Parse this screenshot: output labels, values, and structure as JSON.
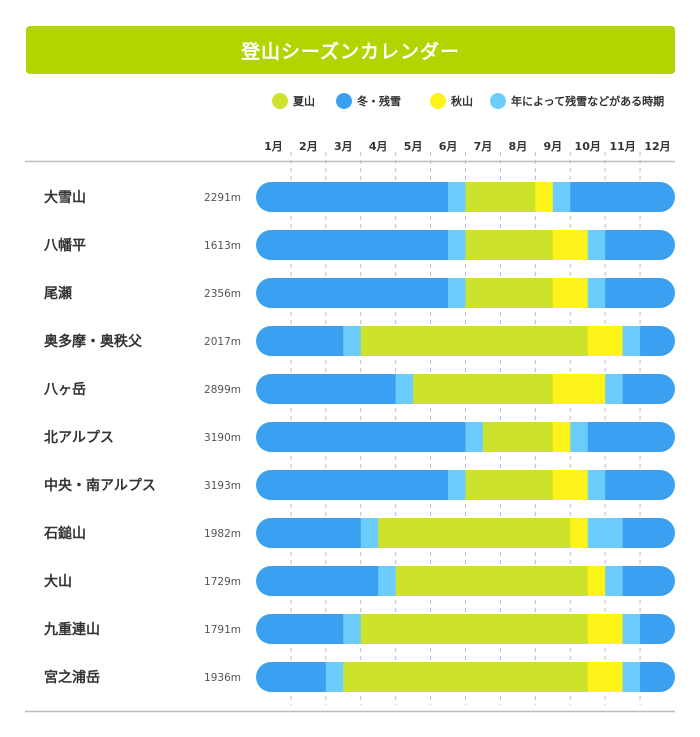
{
  "colors": {
    "summer": "#cde22c",
    "winter": "#3aa1f2",
    "autumn": "#fdf318",
    "variable": "#6ccdfd",
    "title_bg": "#b3d400",
    "axis": "#bdbdbd",
    "text": "#333333"
  },
  "chart_data": {
    "type": "bar",
    "title": "登山シーズンカレンダー",
    "legend": [
      {
        "key": "summer",
        "label": "夏山",
        "color": "#cde22c"
      },
      {
        "key": "winter",
        "label": "冬・残雪",
        "color": "#3aa1f2"
      },
      {
        "key": "autumn",
        "label": "秋山",
        "color": "#fdf318"
      },
      {
        "key": "variable",
        "label": "年によって残雪などがある時期",
        "color": "#6ccdfd"
      }
    ],
    "legend_position": "top-right",
    "months": [
      "1月",
      "2月",
      "3月",
      "4月",
      "5月",
      "6月",
      "7月",
      "8月",
      "9月",
      "10月",
      "11月",
      "12月"
    ],
    "xlim": [
      1,
      13
    ],
    "grid": true,
    "mountains": [
      {
        "name": "大雪山",
        "elevation": "2291m",
        "segments": [
          {
            "type": "winter",
            "start": 1,
            "end": 6.5
          },
          {
            "type": "variable",
            "start": 6.5,
            "end": 7
          },
          {
            "type": "summer",
            "start": 7,
            "end": 9
          },
          {
            "type": "autumn",
            "start": 9,
            "end": 9.5
          },
          {
            "type": "variable",
            "start": 9.5,
            "end": 10
          },
          {
            "type": "winter",
            "start": 10,
            "end": 13
          }
        ]
      },
      {
        "name": "八幡平",
        "elevation": "1613m",
        "segments": [
          {
            "type": "winter",
            "start": 1,
            "end": 6.5
          },
          {
            "type": "variable",
            "start": 6.5,
            "end": 7
          },
          {
            "type": "summer",
            "start": 7,
            "end": 9.5
          },
          {
            "type": "autumn",
            "start": 9.5,
            "end": 10.5
          },
          {
            "type": "variable",
            "start": 10.5,
            "end": 11
          },
          {
            "type": "winter",
            "start": 11,
            "end": 13
          }
        ]
      },
      {
        "name": "尾瀬",
        "elevation": "2356m",
        "segments": [
          {
            "type": "winter",
            "start": 1,
            "end": 6.5
          },
          {
            "type": "variable",
            "start": 6.5,
            "end": 7
          },
          {
            "type": "summer",
            "start": 7,
            "end": 9.5
          },
          {
            "type": "autumn",
            "start": 9.5,
            "end": 10.5
          },
          {
            "type": "variable",
            "start": 10.5,
            "end": 11
          },
          {
            "type": "winter",
            "start": 11,
            "end": 13
          }
        ]
      },
      {
        "name": "奥多摩・奥秩父",
        "elevation": "2017m",
        "segments": [
          {
            "type": "winter",
            "start": 1,
            "end": 3.5
          },
          {
            "type": "variable",
            "start": 3.5,
            "end": 4
          },
          {
            "type": "summer",
            "start": 4,
            "end": 10.5
          },
          {
            "type": "autumn",
            "start": 10.5,
            "end": 11.5
          },
          {
            "type": "variable",
            "start": 11.5,
            "end": 12
          },
          {
            "type": "winter",
            "start": 12,
            "end": 13
          }
        ]
      },
      {
        "name": "八ヶ岳",
        "elevation": "2899m",
        "segments": [
          {
            "type": "winter",
            "start": 1,
            "end": 5
          },
          {
            "type": "variable",
            "start": 5,
            "end": 5.5
          },
          {
            "type": "summer",
            "start": 5.5,
            "end": 9.5
          },
          {
            "type": "autumn",
            "start": 9.5,
            "end": 11
          },
          {
            "type": "variable",
            "start": 11,
            "end": 11.5
          },
          {
            "type": "winter",
            "start": 11.5,
            "end": 13
          }
        ]
      },
      {
        "name": "北アルプス",
        "elevation": "3190m",
        "segments": [
          {
            "type": "winter",
            "start": 1,
            "end": 7
          },
          {
            "type": "variable",
            "start": 7,
            "end": 7.5
          },
          {
            "type": "summer",
            "start": 7.5,
            "end": 9.5
          },
          {
            "type": "autumn",
            "start": 9.5,
            "end": 10
          },
          {
            "type": "variable",
            "start": 10,
            "end": 10.5
          },
          {
            "type": "winter",
            "start": 10.5,
            "end": 13
          }
        ]
      },
      {
        "name": "中央・南アルプス",
        "elevation": "3193m",
        "segments": [
          {
            "type": "winter",
            "start": 1,
            "end": 6.5
          },
          {
            "type": "variable",
            "start": 6.5,
            "end": 7
          },
          {
            "type": "summer",
            "start": 7,
            "end": 9.5
          },
          {
            "type": "autumn",
            "start": 9.5,
            "end": 10.5
          },
          {
            "type": "variable",
            "start": 10.5,
            "end": 11
          },
          {
            "type": "winter",
            "start": 11,
            "end": 13
          }
        ]
      },
      {
        "name": "石鎚山",
        "elevation": "1982m",
        "segments": [
          {
            "type": "winter",
            "start": 1,
            "end": 4
          },
          {
            "type": "variable",
            "start": 4,
            "end": 4.5
          },
          {
            "type": "summer",
            "start": 4.5,
            "end": 10
          },
          {
            "type": "autumn",
            "start": 10,
            "end": 10.5
          },
          {
            "type": "variable",
            "start": 10.5,
            "end": 11.5
          },
          {
            "type": "winter",
            "start": 11.5,
            "end": 13
          }
        ]
      },
      {
        "name": "大山",
        "elevation": "1729m",
        "segments": [
          {
            "type": "winter",
            "start": 1,
            "end": 4.5
          },
          {
            "type": "variable",
            "start": 4.5,
            "end": 5
          },
          {
            "type": "summer",
            "start": 5,
            "end": 10.5
          },
          {
            "type": "autumn",
            "start": 10.5,
            "end": 11
          },
          {
            "type": "variable",
            "start": 11,
            "end": 11.5
          },
          {
            "type": "winter",
            "start": 11.5,
            "end": 13
          }
        ]
      },
      {
        "name": "九重連山",
        "elevation": "1791m",
        "segments": [
          {
            "type": "winter",
            "start": 1,
            "end": 3.5
          },
          {
            "type": "variable",
            "start": 3.5,
            "end": 4
          },
          {
            "type": "summer",
            "start": 4,
            "end": 10.5
          },
          {
            "type": "autumn",
            "start": 10.5,
            "end": 11.5
          },
          {
            "type": "variable",
            "start": 11.5,
            "end": 12
          },
          {
            "type": "winter",
            "start": 12,
            "end": 13
          }
        ]
      },
      {
        "name": "宮之浦岳",
        "elevation": "1936m",
        "segments": [
          {
            "type": "winter",
            "start": 1,
            "end": 3
          },
          {
            "type": "variable",
            "start": 3,
            "end": 3.5
          },
          {
            "type": "summer",
            "start": 3.5,
            "end": 10.5
          },
          {
            "type": "autumn",
            "start": 10.5,
            "end": 11.5
          },
          {
            "type": "variable",
            "start": 11.5,
            "end": 12
          },
          {
            "type": "winter",
            "start": 12,
            "end": 13
          }
        ]
      }
    ]
  }
}
